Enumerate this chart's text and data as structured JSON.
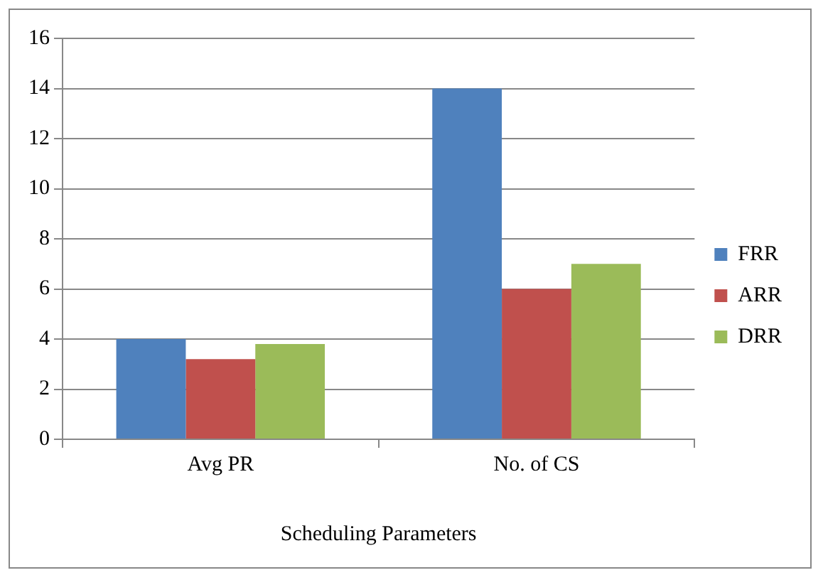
{
  "chart_data": {
    "type": "bar",
    "xlabel": "Scheduling Parameters",
    "categories": [
      "Avg PR",
      "No. of CS"
    ],
    "series": [
      {
        "name": "FRR",
        "color": "#4f81bd",
        "values": [
          4,
          14
        ]
      },
      {
        "name": "ARR",
        "color": "#c0504d",
        "values": [
          3.2,
          6
        ]
      },
      {
        "name": "DRR",
        "color": "#9bbb59",
        "values": [
          3.8,
          7
        ]
      }
    ],
    "ylim": [
      0,
      16
    ],
    "yticks": [
      0,
      2,
      4,
      6,
      8,
      10,
      12,
      14,
      16
    ],
    "grid": "y",
    "legend": "right"
  }
}
